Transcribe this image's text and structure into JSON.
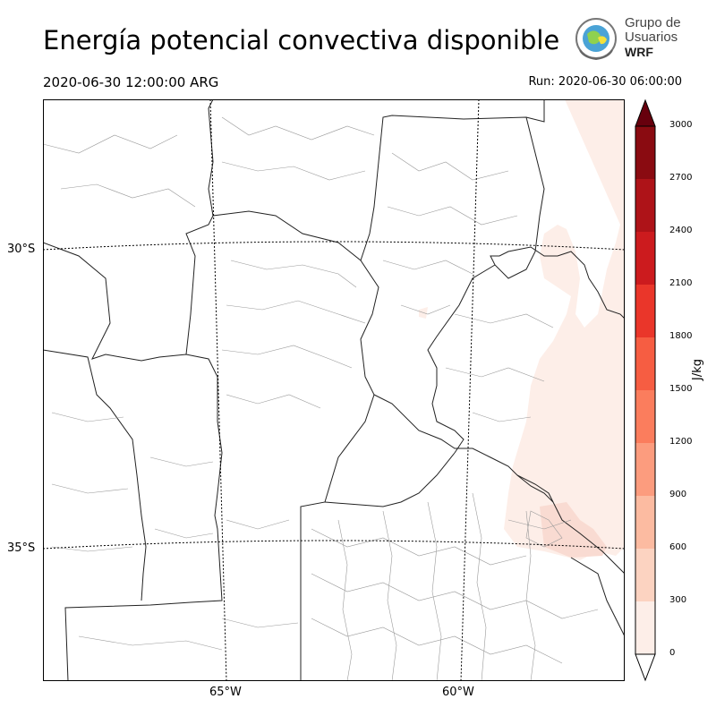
{
  "header": {
    "title": "Energía potencial convectiva disponible",
    "valid_time": "2020-06-30 12:00:00 ARG",
    "run_time": "Run: 2020-06-30 06:00:00"
  },
  "logo": {
    "line1": "Grupo de",
    "line2": "Usuarios",
    "line3": "WRF"
  },
  "map": {
    "lat_labels": [
      "30°S",
      "35°S"
    ],
    "lon_labels": [
      "65°W",
      "60°W"
    ]
  },
  "colorbar": {
    "units": "J/kg",
    "ticks": [
      "0",
      "300",
      "600",
      "900",
      "1200",
      "1500",
      "1800",
      "2100",
      "2400",
      "2700",
      "3000"
    ],
    "colors": [
      "#fdeee8",
      "#fcd3c1",
      "#fcbba1",
      "#fc9c7e",
      "#fb7d5d",
      "#f65d42",
      "#ea362a",
      "#cc1b1e",
      "#ae1318",
      "#8a0b11"
    ],
    "extend_max_color": "#67000d",
    "extend_min_color": "#ffffff"
  },
  "chart_data": {
    "type": "heatmap",
    "title": "Energía potencial convectiva disponible",
    "variable": "CAPE",
    "units": "J/kg",
    "range": [
      0,
      3000
    ],
    "interval": 300,
    "visible_values": "0-300 J/kg over eastern region (Entre Ríos / Uruguay / Río de la Plata); near 0 elsewhere",
    "lat_ticks": [
      "30°S",
      "35°S"
    ],
    "lon_ticks": [
      "65°W",
      "60°W"
    ]
  }
}
